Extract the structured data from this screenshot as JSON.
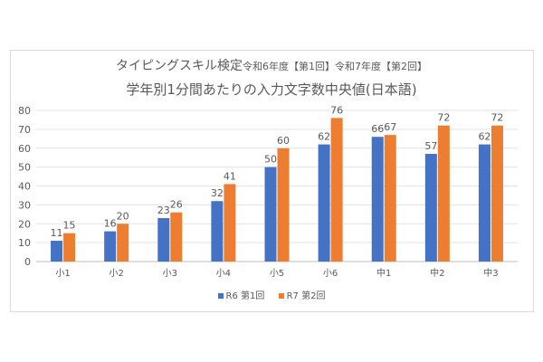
{
  "chart_data": {
    "type": "bar",
    "title_main": "タイピングスキル検定",
    "title_sub": "令和6年度【第1回】令和7年度【第2回】",
    "title_line2": "学年別1分間あたりの入力文字数中央値(日本語)",
    "categories": [
      "小1",
      "小2",
      "小3",
      "小4",
      "小5",
      "小6",
      "中1",
      "中2",
      "中3"
    ],
    "series": [
      {
        "name": "R6 第1回",
        "color": "#4472C4",
        "values": [
          11,
          16,
          23,
          32,
          50,
          62,
          66,
          57,
          62
        ]
      },
      {
        "name": "R7 第2回",
        "color": "#ED7D31",
        "values": [
          15,
          20,
          26,
          41,
          60,
          76,
          67,
          72,
          72
        ]
      }
    ],
    "yticks": [
      0,
      10,
      20,
      30,
      40,
      50,
      60,
      70,
      80
    ],
    "ylim": [
      0,
      80
    ],
    "grid": true,
    "legend": "bottom",
    "data_labels": true
  }
}
